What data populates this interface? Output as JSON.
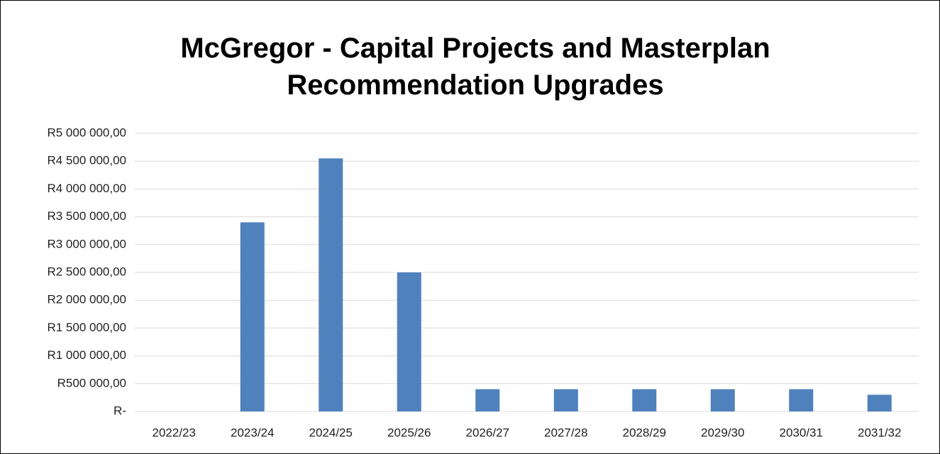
{
  "chart_data": {
    "type": "bar",
    "title": "McGregor - Capital Projects and Masterplan Recommendation Upgrades",
    "categories": [
      "2022/23",
      "2023/24",
      "2024/25",
      "2025/26",
      "2026/27",
      "2027/28",
      "2028/29",
      "2029/30",
      "2030/31",
      "2031/32"
    ],
    "values": [
      0,
      3400000,
      4550000,
      2500000,
      400000,
      400000,
      400000,
      400000,
      400000,
      300000
    ],
    "color": "#4f81bd",
    "ylim": [
      0,
      5000000
    ],
    "yticks": [
      {
        "value": 0,
        "label": "R-"
      },
      {
        "value": 500000,
        "label": "R500 000,00"
      },
      {
        "value": 1000000,
        "label": "R1 000 000,00"
      },
      {
        "value": 1500000,
        "label": "R1 500 000,00"
      },
      {
        "value": 2000000,
        "label": "R2 000 000,00"
      },
      {
        "value": 2500000,
        "label": "R2 500 000,00"
      },
      {
        "value": 3000000,
        "label": "R3 000 000,00"
      },
      {
        "value": 3500000,
        "label": "R3 500 000,00"
      },
      {
        "value": 4000000,
        "label": "R4 000 000,00"
      },
      {
        "value": 4500000,
        "label": "R4 500 000,00"
      },
      {
        "value": 5000000,
        "label": "R5 000 000,00"
      }
    ],
    "grid": true
  }
}
